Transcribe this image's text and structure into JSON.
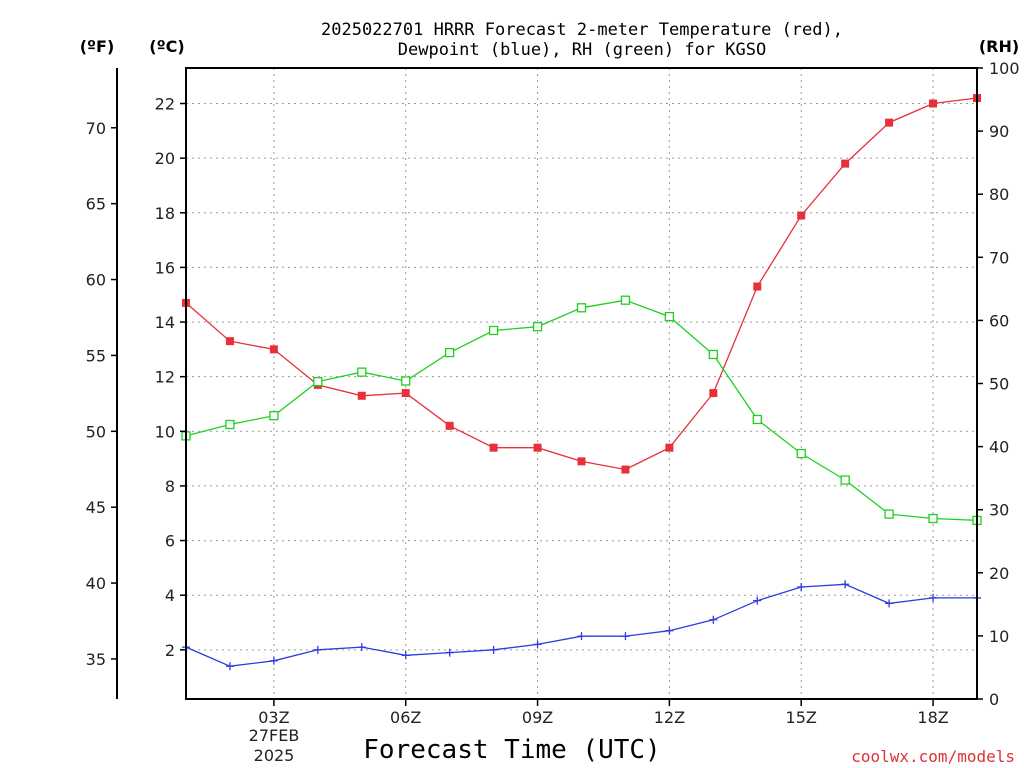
{
  "title_line1": "2025022701 HRRR Forecast 2-meter Temperature (red),",
  "title_line2": "Dewpoint (blue), RH (green) for KGSO",
  "unit_f": "(ºF)",
  "unit_c": "(ºC)",
  "unit_rh": "(RH)",
  "xlabel": "Forecast Time (UTC)",
  "credit": "coolwx.com/models",
  "date_line1": "27FEB",
  "date_line2": "2025",
  "colors": {
    "temp": "#e8303a",
    "dewpoint": "#2a3de0",
    "rh": "#20d020"
  },
  "chart_data": {
    "type": "line",
    "title": "2025022701 HRRR Forecast 2-meter Temperature (red), Dewpoint (blue), RH (green) for KGSO",
    "xlabel": "Forecast Time (UTC)",
    "x": [
      "01Z",
      "02Z",
      "03Z",
      "04Z",
      "05Z",
      "06Z",
      "07Z",
      "08Z",
      "09Z",
      "10Z",
      "11Z",
      "12Z",
      "13Z",
      "14Z",
      "15Z",
      "16Z",
      "17Z",
      "18Z",
      "19Z"
    ],
    "x_tick_labels": [
      "03Z",
      "06Z",
      "09Z",
      "12Z",
      "15Z",
      "18Z"
    ],
    "x_tick_hours": [
      3,
      6,
      9,
      12,
      15,
      18
    ],
    "xlim_hours": [
      1,
      19
    ],
    "left_axis_celsius": {
      "ylim": [
        0.2,
        23.3
      ],
      "ticks": [
        2,
        4,
        6,
        8,
        10,
        12,
        14,
        16,
        18,
        20,
        22
      ]
    },
    "left_axis_fahrenheit": {
      "ticks": [
        35,
        40,
        45,
        50,
        55,
        60,
        65,
        70
      ]
    },
    "right_axis_rh": {
      "ylim": [
        0,
        100
      ],
      "ticks": [
        0,
        10,
        20,
        30,
        40,
        50,
        60,
        70,
        80,
        90,
        100
      ]
    },
    "grid": true,
    "series": [
      {
        "name": "Temperature (red)",
        "axis": "celsius",
        "marker": "filled-square",
        "values": [
          14.7,
          13.3,
          13.0,
          11.7,
          11.3,
          11.4,
          10.2,
          9.4,
          9.4,
          8.9,
          8.6,
          9.4,
          11.4,
          15.3,
          17.9,
          19.8,
          21.3,
          22.0,
          22.2
        ]
      },
      {
        "name": "Dewpoint (blue)",
        "axis": "celsius",
        "marker": "plus",
        "values": [
          2.1,
          1.4,
          1.6,
          2.0,
          2.1,
          1.8,
          1.9,
          2.0,
          2.2,
          2.5,
          2.5,
          2.7,
          3.1,
          3.8,
          4.3,
          4.4,
          3.7,
          3.9,
          3.9
        ]
      },
      {
        "name": "RH (green)",
        "axis": "rh",
        "marker": "open-square",
        "values": [
          41.7,
          43.5,
          44.9,
          50.3,
          51.8,
          50.4,
          54.9,
          58.4,
          59.0,
          62.0,
          63.2,
          60.6,
          54.6,
          44.3,
          38.9,
          34.7,
          29.3,
          28.6,
          28.3
        ]
      }
    ]
  }
}
